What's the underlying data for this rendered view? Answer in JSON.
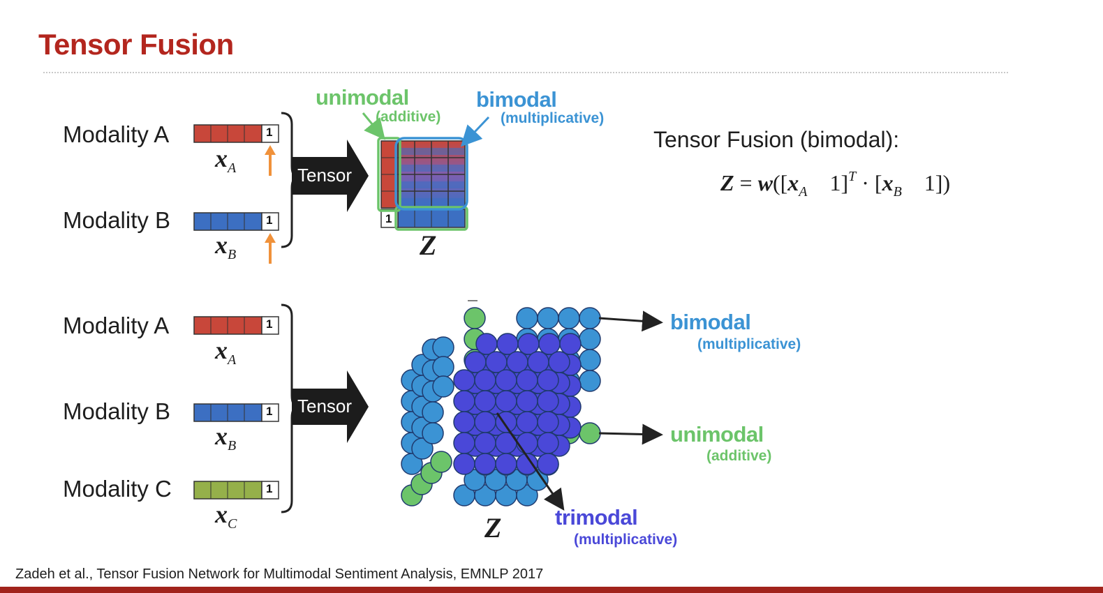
{
  "title": "Tensor Fusion",
  "top": {
    "modality_a": "Modality A",
    "modality_b": "Modality B",
    "xa": "x",
    "xa_sub": "A",
    "xb": "x",
    "xb_sub": "B",
    "one": "1",
    "tensor": "Tensor",
    "z": "Z",
    "unimodal": "unimodal",
    "additive": "(additive)",
    "bimodal": "bimodal",
    "multiplicative": "(multiplicative)",
    "formula_heading": "Tensor Fusion (bimodal):"
  },
  "bottom": {
    "modality_a": "Modality A",
    "modality_b": "Modality B",
    "modality_c": "Modality C",
    "xa": "x",
    "xa_sub": "A",
    "xb": "x",
    "xb_sub": "B",
    "xc": "x",
    "xc_sub": "C",
    "one": "1",
    "tensor": "Tensor",
    "z": "Z",
    "bimodal": "bimodal",
    "bimodal_sub": "(multiplicative)",
    "unimodal": "unimodal",
    "unimodal_sub": "(additive)",
    "trimodal": "trimodal",
    "trimodal_sub": "(multiplicative)"
  },
  "citation": "Zadeh et al., Tensor Fusion Network for Multimodal Sentiment Analysis, EMNLP 2017",
  "colors": {
    "title": "#b3261e",
    "modality_a": "#c8473a",
    "modality_b": "#3c6fc2",
    "modality_c": "#95b04a",
    "unimodal": "#6cc46a",
    "bimodal": "#3b93d4",
    "trimodal": "#4a48d8",
    "arrow_orange": "#f0913a"
  }
}
